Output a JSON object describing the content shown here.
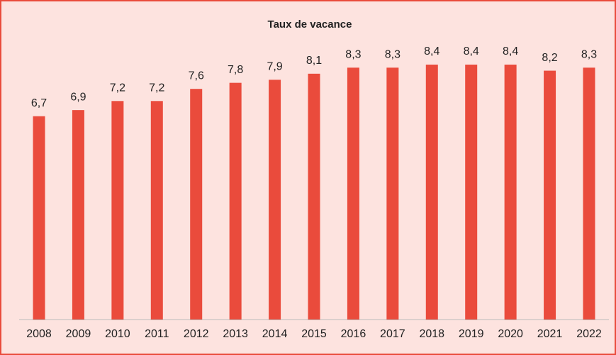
{
  "chart_data": {
    "type": "bar",
    "title": "Taux de vacance",
    "categories": [
      "2008",
      "2009",
      "2010",
      "2011",
      "2012",
      "2013",
      "2014",
      "2015",
      "2016",
      "2017",
      "2018",
      "2019",
      "2020",
      "2021",
      "2022"
    ],
    "values": [
      6.7,
      6.9,
      7.2,
      7.2,
      7.6,
      7.8,
      7.9,
      8.1,
      8.3,
      8.3,
      8.4,
      8.4,
      8.4,
      8.2,
      8.3
    ],
    "value_labels": [
      "6,7",
      "6,9",
      "7,2",
      "7,2",
      "7,6",
      "7,8",
      "7,9",
      "8,1",
      "8,3",
      "8,3",
      "8,4",
      "8,4",
      "8,4",
      "8,2",
      "8,3"
    ],
    "color": "#ea4b3c",
    "ylim": [
      0,
      9.5
    ]
  }
}
